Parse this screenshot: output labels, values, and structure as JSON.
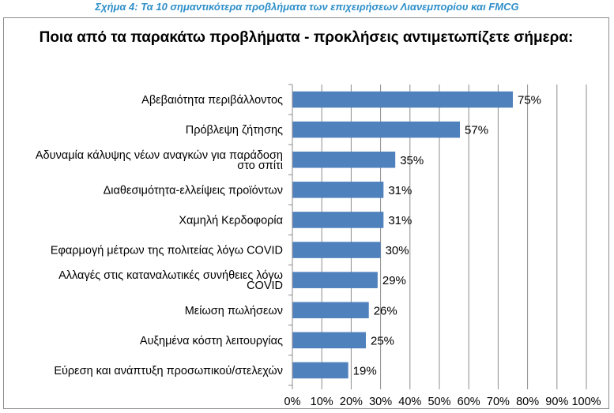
{
  "caption": "Σχήμα 4: Τα 10 σημαντικότερα προβλήματα των επιχειρήσεων Λιανεμπορίου και FMCG",
  "chart_data": {
    "type": "bar",
    "orientation": "horizontal",
    "title": "Ποια από τα παρακάτω προβλήματα - προκλήσεις αντιμετωπίζετε σήμερα:",
    "categories": [
      [
        "Αβεβαιότητα περιβάλλοντος"
      ],
      [
        "Πρόβλεψη ζήτησης"
      ],
      [
        "Αδυναμία κάλυψης νέων αναγκών για παράδοση",
        "στο σπίτι"
      ],
      [
        "Διαθεσιμότητα-ελλείψεις προϊόντων"
      ],
      [
        "Χαμηλή Κερδοφορία"
      ],
      [
        "Εφαρμογή μέτρων της πολιτείας λόγω COVID"
      ],
      [
        "Αλλαγές στις καταναλωτικές συνήθειες λόγω",
        "COVID"
      ],
      [
        "Μείωση πωλήσεων"
      ],
      [
        "Αυξημένα κόστη λειτουργίας"
      ],
      [
        "Εύρεση και ανάπτυξη προσωπικού/στελεχών"
      ]
    ],
    "values": [
      75,
      57,
      35,
      31,
      31,
      30,
      29,
      26,
      25,
      19
    ],
    "value_labels": [
      "75%",
      "57%",
      "35%",
      "31%",
      "31%",
      "30%",
      "29%",
      "26%",
      "25%",
      "19%"
    ],
    "xlim": [
      0,
      100
    ],
    "x_ticks": [
      0,
      10,
      20,
      30,
      40,
      50,
      60,
      70,
      80,
      90,
      100
    ],
    "x_tick_labels": [
      "0%",
      "10%",
      "20%",
      "30%",
      "40%",
      "50%",
      "60%",
      "70%",
      "80%",
      "90%",
      "100%"
    ],
    "grid": true,
    "bar_color": "#4f81bd",
    "legend": "none"
  }
}
